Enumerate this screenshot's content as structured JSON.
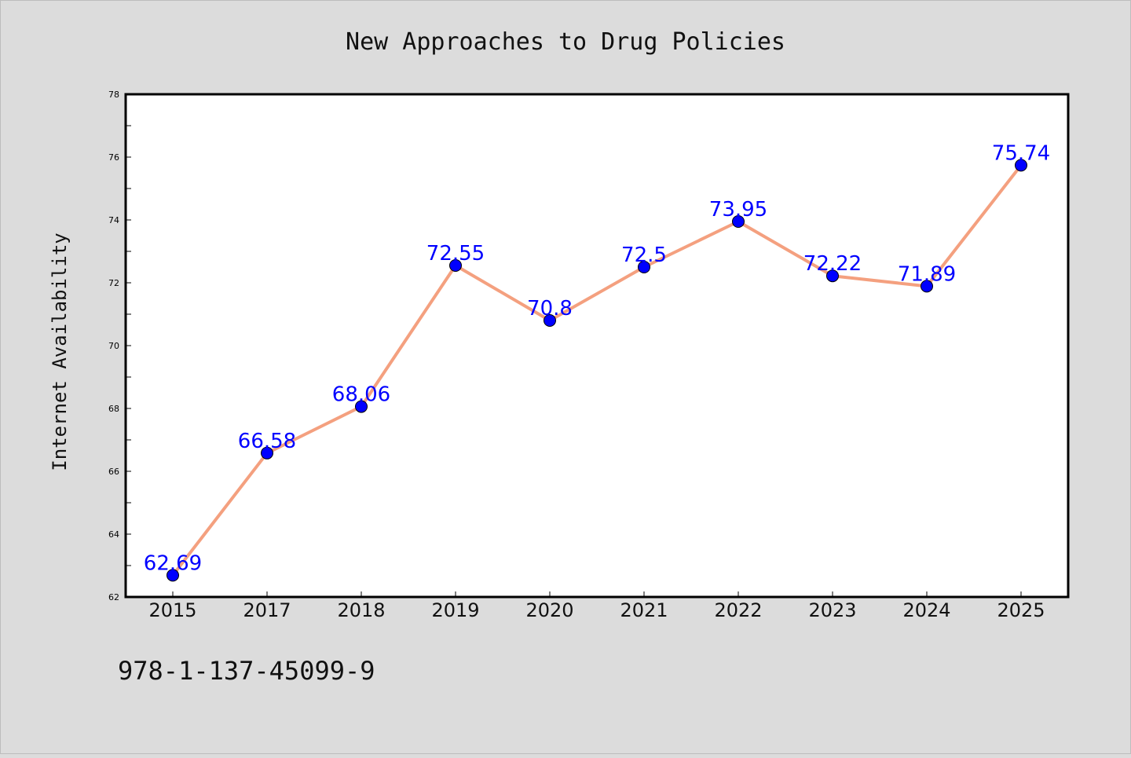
{
  "chart_data": {
    "type": "line",
    "title": "New Approaches to Drug Policies",
    "xlabel": "",
    "ylabel": "Internet Availability",
    "categories": [
      "2015",
      "2017",
      "2018",
      "2019",
      "2020",
      "2021",
      "2022",
      "2023",
      "2024",
      "2025"
    ],
    "series": [
      {
        "values": [
          62.69,
          66.58,
          68.06,
          72.55,
          70.8,
          72.5,
          73.95,
          72.22,
          71.89,
          75.74
        ]
      }
    ],
    "data_labels": [
      "62.69",
      "66.58",
      "68.06",
      "72.55",
      "70.8",
      "72.5",
      "73.95",
      "72.22",
      "71.89",
      "75.74"
    ],
    "ylim": [
      62,
      78
    ],
    "yticks": [
      62,
      64,
      66,
      68,
      70,
      72,
      74,
      76,
      78
    ],
    "grid": false,
    "legend": "none",
    "colors": {
      "background": "#dcdcdc",
      "plot_background": "#ffffff",
      "line": "#f4a07f",
      "marker": "#0000ff",
      "data_label": "#0000ff"
    }
  },
  "footer": {
    "isbn": "978-1-137-45099-9"
  }
}
